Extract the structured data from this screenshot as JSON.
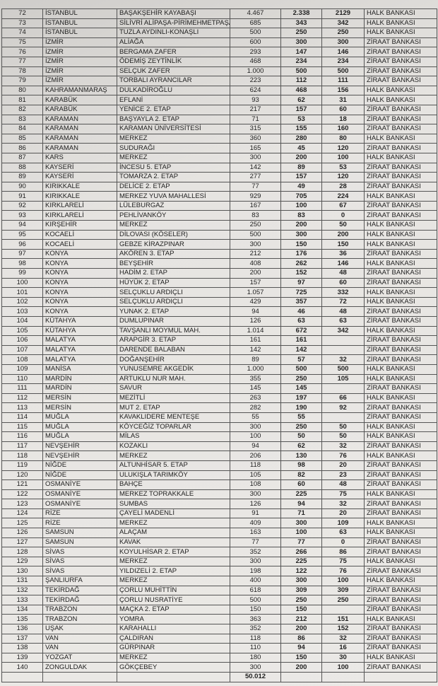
{
  "table": {
    "rows": [
      [
        "72",
        "İSTANBUL",
        "BAŞAKŞEHİR KAYABAŞI",
        "4.467",
        "2.338",
        "2129",
        "HALK BANKASI"
      ],
      [
        "73",
        "İSTANBUL",
        "SİLİVRİ ALİPAŞA-PİRİMEHMETPAŞA",
        "685",
        "343",
        "342",
        "HALK BANKASI"
      ],
      [
        "74",
        "İSTANBUL",
        "TUZLA AYDINLI-KONAŞLI",
        "500",
        "250",
        "250",
        "HALK BANKASI"
      ],
      [
        "75",
        "İZMİR",
        "ALİAĞA",
        "600",
        "300",
        "300",
        "ZİRAAT BANKASI"
      ],
      [
        "76",
        "İZMİR",
        "BERGAMA ZAFER",
        "293",
        "147",
        "146",
        "ZİRAAT BANKASI"
      ],
      [
        "77",
        "İZMİR",
        "ÖDEMİŞ ZEYTİNLİK",
        "468",
        "234",
        "234",
        "ZİRAAT BANKASI"
      ],
      [
        "78",
        "İZMİR",
        "SELÇUK ZAFER",
        "1.000",
        "500",
        "500",
        "ZİRAAT BANKASI"
      ],
      [
        "79",
        "İZMİR",
        "TORBALI AYRANCILAR",
        "223",
        "112",
        "111",
        "ZİRAAT BANKASI"
      ],
      [
        "80",
        "KAHRAMANMARAŞ",
        "DULKADİROĞLU",
        "624",
        "468",
        "156",
        "HALK BANKASI"
      ],
      [
        "81",
        "KARABÜK",
        "EFLANİ",
        "93",
        "62",
        "31",
        "HALK BANKASI"
      ],
      [
        "82",
        "KARABÜK",
        "YENİCE 2. ETAP",
        "217",
        "157",
        "60",
        "ZİRAAT BANKASI"
      ],
      [
        "83",
        "KARAMAN",
        "BAŞYAYLA 2. ETAP",
        "71",
        "53",
        "18",
        "ZİRAAT BANKASI"
      ],
      [
        "84",
        "KARAMAN",
        "KARAMAN ÜNİVERSİTESİ",
        "315",
        "155",
        "160",
        "ZİRAAT BANKASI"
      ],
      [
        "85",
        "KARAMAN",
        "MERKEZ",
        "360",
        "280",
        "80",
        "HALK BANKASI"
      ],
      [
        "86",
        "KARAMAN",
        "SUDURAĞI",
        "165",
        "45",
        "120",
        "ZİRAAT BANKASI"
      ],
      [
        "87",
        "KARS",
        "MERKEZ",
        "300",
        "200",
        "100",
        "HALK BANKASI"
      ],
      [
        "88",
        "KAYSERİ",
        "İNCESU 5. ETAP",
        "142",
        "89",
        "53",
        "ZİRAAT BANKASI"
      ],
      [
        "89",
        "KAYSERİ",
        "TOMARZA 2. ETAP",
        "277",
        "157",
        "120",
        "ZİRAAT BANKASI"
      ],
      [
        "90",
        "KIRIKKALE",
        "DELİCE 2. ETAP",
        "77",
        "49",
        "28",
        "ZİRAAT BANKASI"
      ],
      [
        "91",
        "KIRIKKALE",
        "MERKEZ YUVA MAHALLESİ",
        "929",
        "705",
        "224",
        "HALK BANKASI"
      ],
      [
        "92",
        "KIRKLARELİ",
        "LÜLEBURGAZ",
        "167",
        "100",
        "67",
        "ZİRAAT BANKASI"
      ],
      [
        "93",
        "KIRKLARELİ",
        "PEHLİVANKÖY",
        "83",
        "83",
        "0",
        "ZİRAAT BANKASI"
      ],
      [
        "94",
        "KIRŞEHİR",
        "MERKEZ",
        "250",
        "200",
        "50",
        "HALK BANKASI"
      ],
      [
        "95",
        "KOCAELİ",
        "DİLOVASI (KÖSELER)",
        "500",
        "300",
        "200",
        "HALK BANKASI"
      ],
      [
        "96",
        "KOCAELİ",
        "GEBZE KİRAZPINAR",
        "300",
        "150",
        "150",
        "HALK BANKASI"
      ],
      [
        "97",
        "KONYA",
        "AKÖREN 3. ETAP",
        "212",
        "176",
        "36",
        "ZİRAAT BANKASI"
      ],
      [
        "98",
        "KONYA",
        "BEYŞEHİR",
        "408",
        "262",
        "146",
        "HALK BANKASI"
      ],
      [
        "99",
        "KONYA",
        "HADİM 2. ETAP",
        "200",
        "152",
        "48",
        "ZİRAAT BANKASI"
      ],
      [
        "100",
        "KONYA",
        "HÜYÜK 2. ETAP",
        "157",
        "97",
        "60",
        "ZİRAAT BANKASI"
      ],
      [
        "101",
        "KONYA",
        "SELÇUKLU ARDIÇLI",
        "1.057",
        "725",
        "332",
        "HALK BANKASI"
      ],
      [
        "102",
        "KONYA",
        "SELÇUKLU ARDIÇLI",
        "429",
        "357",
        "72",
        "HALK BANKASI"
      ],
      [
        "103",
        "KONYA",
        "YUNAK 2. ETAP",
        "94",
        "46",
        "48",
        "ZİRAAT BANKASI"
      ],
      [
        "104",
        "KÜTAHYA",
        "DUMLUPINAR",
        "126",
        "63",
        "63",
        "ZİRAAT BANKASI"
      ],
      [
        "105",
        "KÜTAHYA",
        "TAVŞANLI MOYMUL MAH.",
        "1.014",
        "672",
        "342",
        "HALK BANKASI"
      ],
      [
        "106",
        "MALATYA",
        "ARAPGİR 3. ETAP",
        "161",
        "161",
        null,
        "ZİRAAT BANKASI"
      ],
      [
        "107",
        "MALATYA",
        "DARENDE BALABAN",
        "142",
        "142",
        null,
        "ZİRAAT BANKASI"
      ],
      [
        "108",
        "MALATYA",
        "DOĞANŞEHİR",
        "89",
        "57",
        "32",
        "ZİRAAT BANKASI"
      ],
      [
        "109",
        "MANİSA",
        "YUNUSEMRE AKGEDİK",
        "1.000",
        "500",
        "500",
        "HALK BANKASI"
      ],
      [
        "110",
        "MARDİN",
        "ARTUKLU NUR MAH.",
        "355",
        "250",
        "105",
        "HALK BANKASI"
      ],
      [
        "111",
        "MARDİN",
        "SAVUR",
        "145",
        "145",
        null,
        "ZİRAAT BANKASI"
      ],
      [
        "112",
        "MERSİN",
        "MEZİTLİ",
        "263",
        "197",
        "66",
        "HALK BANKASI"
      ],
      [
        "113",
        "MERSİN",
        "MUT 2. ETAP",
        "282",
        "190",
        "92",
        "ZİRAAT BANKASI"
      ],
      [
        "114",
        "MUĞLA",
        "KAVAKLIDERE MENTEŞE",
        "55",
        "55",
        null,
        "ZİRAAT BANKASI"
      ],
      [
        "115",
        "MUĞLA",
        "KÖYCEĞİZ TOPARLAR",
        "300",
        "250",
        "50",
        "HALK BANKASI"
      ],
      [
        "116",
        "MUĞLA",
        "MİLAS",
        "100",
        "50",
        "50",
        "HALK BANKASI"
      ],
      [
        "117",
        "NEVŞEHİR",
        "KOZAKLI",
        "94",
        "62",
        "32",
        "ZİRAAT BANKASI"
      ],
      [
        "118",
        "NEVŞEHİR",
        "MERKEZ",
        "206",
        "130",
        "76",
        "HALK BANKASI"
      ],
      [
        "119",
        "NİĞDE",
        "ALTUNHİSAR 5. ETAP",
        "118",
        "98",
        "20",
        "ZİRAAT BANKASI"
      ],
      [
        "120",
        "NİĞDE",
        "ULUKIŞLA TARIMKÖY",
        "105",
        "82",
        "23",
        "ZİRAAT BANKASI"
      ],
      [
        "121",
        "OSMANİYE",
        "BAHÇE",
        "108",
        "60",
        "48",
        "ZİRAAT BANKASI"
      ],
      [
        "122",
        "OSMANİYE",
        "MERKEZ TOPRAKKALE",
        "300",
        "225",
        "75",
        "HALK BANKASI"
      ],
      [
        "123",
        "OSMANİYE",
        "SUMBAS",
        "126",
        "94",
        "32",
        "ZİRAAT BANKASI"
      ],
      [
        "124",
        "RİZE",
        "ÇAYELİ MADENLİ",
        "91",
        "71",
        "20",
        "ZİRAAT BANKASI"
      ],
      [
        "125",
        "RİZE",
        "MERKEZ",
        "409",
        "300",
        "109",
        "HALK BANKASI"
      ],
      [
        "126",
        "SAMSUN",
        "ALAÇAM",
        "163",
        "100",
        "63",
        "HALK BANKASI"
      ],
      [
        "127",
        "SAMSUN",
        "KAVAK",
        "77",
        "77",
        "0",
        "ZİRAAT BANKASI"
      ],
      [
        "128",
        "SİVAS",
        "KOYULHİSAR 2. ETAP",
        "352",
        "266",
        "86",
        "ZİRAAT BANKASI"
      ],
      [
        "129",
        "SİVAS",
        "MERKEZ",
        "300",
        "225",
        "75",
        "HALK BANKASI"
      ],
      [
        "130",
        "SİVAS",
        "YILDIZELİ 2. ETAP",
        "198",
        "122",
        "76",
        "ZİRAAT BANKASI"
      ],
      [
        "131",
        "ŞANLIURFA",
        "MERKEZ",
        "400",
        "300",
        "100",
        "HALK BANKASI"
      ],
      [
        "132",
        "TEKİRDAĞ",
        "ÇORLU MUHİTTİN",
        "618",
        "309",
        "309",
        "ZİRAAT BANKASI"
      ],
      [
        "133",
        "TEKİRDAĞ",
        "ÇORLU NUSRATİYE",
        "500",
        "250",
        "250",
        "ZİRAAT BANKASI"
      ],
      [
        "134",
        "TRABZON",
        "MAÇKA 2. ETAP",
        "150",
        "150",
        null,
        "ZİRAAT BANKASI"
      ],
      [
        "135",
        "TRABZON",
        "YOMRA",
        "363",
        "212",
        "151",
        "HALK BANKASI"
      ],
      [
        "136",
        "UŞAK",
        "KARAHALLI",
        "352",
        "200",
        "152",
        "ZİRAAT BANKASI"
      ],
      [
        "137",
        "VAN",
        "ÇALDIRAN",
        "118",
        "86",
        "32",
        "ZİRAAT BANKASI"
      ],
      [
        "138",
        "VAN",
        "GÜRPINAR",
        "110",
        "94",
        "16",
        "ZİRAAT BANKASI"
      ],
      [
        "139",
        "YOZGAT",
        "MERKEZ",
        "180",
        "150",
        "30",
        "HALK BANKASI"
      ],
      [
        "140",
        "ZONGULDAK",
        "GÖKÇEBEY",
        "300",
        "200",
        "100",
        "ZİRAAT BANKASI"
      ]
    ],
    "total": "50.012"
  }
}
